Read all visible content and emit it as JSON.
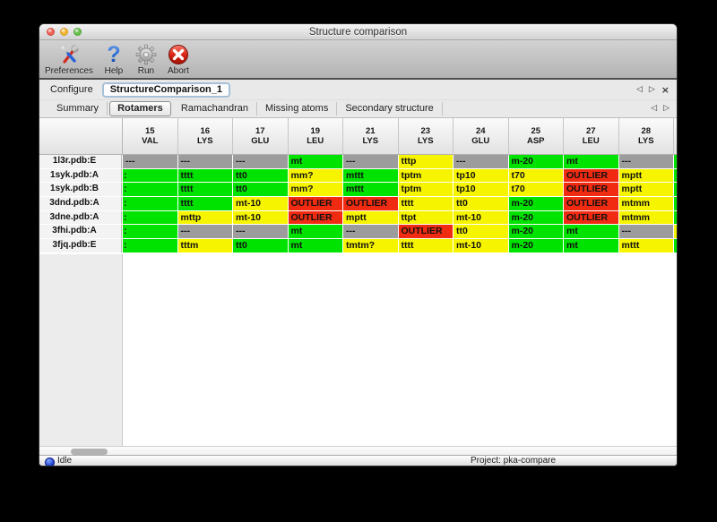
{
  "window": {
    "title": "Structure comparison"
  },
  "toolbar": {
    "items": [
      {
        "label": "Preferences",
        "icon": "tools-icon"
      },
      {
        "label": "Help",
        "icon": "question-mark-icon"
      },
      {
        "label": "Run",
        "icon": "gear-icon"
      },
      {
        "label": "Abort",
        "icon": "abort-x-icon"
      }
    ]
  },
  "configure": {
    "label": "Configure",
    "value": "StructureComparison_1",
    "nav": {
      "prev": "◁",
      "next": "▷",
      "close": "×"
    }
  },
  "tabs": {
    "items": [
      {
        "label": "Summary",
        "selected": false
      },
      {
        "label": "Rotamers",
        "selected": true
      },
      {
        "label": "Ramachandran",
        "selected": false
      },
      {
        "label": "Missing atoms",
        "selected": false
      },
      {
        "label": "Secondary structure",
        "selected": false
      }
    ],
    "nav": {
      "prev": "◁",
      "next": "▷"
    }
  },
  "colors": {
    "green": "#00e300",
    "yellow": "#f7f400",
    "red": "#f02b11",
    "gray": "#9c9c9c"
  },
  "table": {
    "columns": [
      {
        "num": "15",
        "res": "VAL"
      },
      {
        "num": "16",
        "res": "LYS"
      },
      {
        "num": "17",
        "res": "GLU"
      },
      {
        "num": "19",
        "res": "LEU"
      },
      {
        "num": "21",
        "res": "LYS"
      },
      {
        "num": "23",
        "res": "LYS"
      },
      {
        "num": "24",
        "res": "GLU"
      },
      {
        "num": "25",
        "res": "ASP"
      },
      {
        "num": "27",
        "res": "LEU"
      },
      {
        "num": "28",
        "res": "LYS"
      }
    ],
    "rows": [
      {
        "label": "1l3r.pdb:E",
        "overflow": "green",
        "cells": [
          {
            "t": "---",
            "c": "gray"
          },
          {
            "t": "---",
            "c": "gray"
          },
          {
            "t": "---",
            "c": "gray"
          },
          {
            "t": "mt",
            "c": "green"
          },
          {
            "t": "---",
            "c": "gray"
          },
          {
            "t": "tttp",
            "c": "yellow"
          },
          {
            "t": "---",
            "c": "gray"
          },
          {
            "t": "m-20",
            "c": "green"
          },
          {
            "t": "mt",
            "c": "green"
          },
          {
            "t": "---",
            "c": "gray"
          }
        ]
      },
      {
        "label": "1syk.pdb:A",
        "overflow": "green",
        "cells": [
          {
            "t": ":",
            "c": "green"
          },
          {
            "t": "tttt",
            "c": "green"
          },
          {
            "t": "tt0",
            "c": "green"
          },
          {
            "t": "mm?",
            "c": "yellow"
          },
          {
            "t": "mttt",
            "c": "green"
          },
          {
            "t": "tptm",
            "c": "yellow"
          },
          {
            "t": "tp10",
            "c": "yellow"
          },
          {
            "t": "t70",
            "c": "yellow"
          },
          {
            "t": "OUTLIER",
            "c": "red"
          },
          {
            "t": "mptt",
            "c": "yellow"
          }
        ]
      },
      {
        "label": "1syk.pdb:B",
        "overflow": "green",
        "cells": [
          {
            "t": ":",
            "c": "green"
          },
          {
            "t": "tttt",
            "c": "green"
          },
          {
            "t": "tt0",
            "c": "green"
          },
          {
            "t": "mm?",
            "c": "yellow"
          },
          {
            "t": "mttt",
            "c": "green"
          },
          {
            "t": "tptm",
            "c": "yellow"
          },
          {
            "t": "tp10",
            "c": "yellow"
          },
          {
            "t": "t70",
            "c": "yellow"
          },
          {
            "t": "OUTLIER",
            "c": "red"
          },
          {
            "t": "mptt",
            "c": "yellow"
          }
        ]
      },
      {
        "label": "3dnd.pdb:A",
        "overflow": "green",
        "cells": [
          {
            "t": ":",
            "c": "green"
          },
          {
            "t": "tttt",
            "c": "green"
          },
          {
            "t": "mt-10",
            "c": "yellow"
          },
          {
            "t": "OUTLIER",
            "c": "red"
          },
          {
            "t": "OUTLIER",
            "c": "red"
          },
          {
            "t": "tttt",
            "c": "yellow"
          },
          {
            "t": "tt0",
            "c": "yellow"
          },
          {
            "t": "m-20",
            "c": "green"
          },
          {
            "t": "OUTLIER",
            "c": "red"
          },
          {
            "t": "mtmm",
            "c": "yellow"
          }
        ]
      },
      {
        "label": "3dne.pdb:A",
        "overflow": "green",
        "cells": [
          {
            "t": ":",
            "c": "green"
          },
          {
            "t": "mttp",
            "c": "yellow"
          },
          {
            "t": "mt-10",
            "c": "yellow"
          },
          {
            "t": "OUTLIER",
            "c": "red"
          },
          {
            "t": "mptt",
            "c": "yellow"
          },
          {
            "t": "ttpt",
            "c": "yellow"
          },
          {
            "t": "mt-10",
            "c": "yellow"
          },
          {
            "t": "m-20",
            "c": "green"
          },
          {
            "t": "OUTLIER",
            "c": "red"
          },
          {
            "t": "mtmm",
            "c": "yellow"
          }
        ]
      },
      {
        "label": "3fhi.pdb:A",
        "overflow": "yellow",
        "cells": [
          {
            "t": ":",
            "c": "green"
          },
          {
            "t": "---",
            "c": "gray"
          },
          {
            "t": "---",
            "c": "gray"
          },
          {
            "t": "mt",
            "c": "green"
          },
          {
            "t": "---",
            "c": "gray"
          },
          {
            "t": "OUTLIER",
            "c": "red"
          },
          {
            "t": "tt0",
            "c": "yellow"
          },
          {
            "t": "m-20",
            "c": "green"
          },
          {
            "t": "mt",
            "c": "green"
          },
          {
            "t": "---",
            "c": "gray"
          }
        ]
      },
      {
        "label": "3fjq.pdb:E",
        "overflow": "green",
        "cells": [
          {
            "t": ":",
            "c": "green"
          },
          {
            "t": "tttm",
            "c": "yellow"
          },
          {
            "t": "tt0",
            "c": "green"
          },
          {
            "t": "mt",
            "c": "green"
          },
          {
            "t": "tmtm?",
            "c": "yellow"
          },
          {
            "t": "tttt",
            "c": "yellow"
          },
          {
            "t": "mt-10",
            "c": "yellow"
          },
          {
            "t": "m-20",
            "c": "green"
          },
          {
            "t": "mt",
            "c": "green"
          },
          {
            "t": "mttt",
            "c": "yellow"
          }
        ]
      }
    ]
  },
  "statusbar": {
    "status": "Idle",
    "project": "Project: pka-compare"
  }
}
